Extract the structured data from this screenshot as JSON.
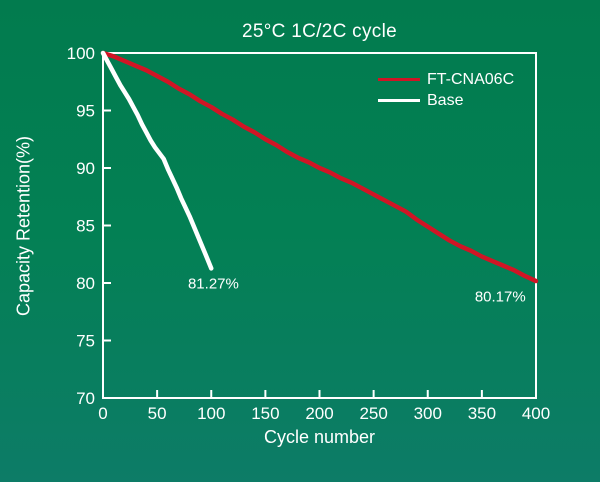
{
  "chart_data": {
    "type": "line",
    "title": "25°C 1C/2C cycle",
    "xlabel": "Cycle number",
    "ylabel": "Capacity Retention(%)",
    "xlim": [
      0,
      400
    ],
    "ylim": [
      70,
      100
    ],
    "xticks": [
      0,
      50,
      100,
      150,
      200,
      250,
      300,
      350,
      400
    ],
    "yticks": [
      70,
      75,
      80,
      85,
      90,
      95,
      100
    ],
    "grid": false,
    "legend_position": "top-right-inside",
    "colors": {
      "background_top": "#027b4e",
      "background_bottom": "#0d7c67",
      "axis": "#ffffff",
      "text": "#ffffff"
    },
    "series": [
      {
        "name": "FT-CNA06C",
        "color": "#d01525",
        "x": [
          0,
          10,
          20,
          30,
          40,
          50,
          60,
          70,
          80,
          90,
          100,
          110,
          120,
          130,
          140,
          150,
          160,
          170,
          180,
          190,
          200,
          210,
          220,
          230,
          240,
          250,
          260,
          270,
          280,
          290,
          300,
          310,
          320,
          330,
          340,
          350,
          360,
          370,
          380,
          390,
          400
        ],
        "y": [
          100.0,
          99.7,
          99.3,
          98.9,
          98.5,
          98.0,
          97.5,
          96.9,
          96.4,
          95.8,
          95.3,
          94.7,
          94.2,
          93.6,
          93.1,
          92.5,
          92.0,
          91.4,
          90.9,
          90.5,
          90.0,
          89.6,
          89.1,
          88.7,
          88.2,
          87.7,
          87.2,
          86.7,
          86.2,
          85.5,
          84.9,
          84.3,
          83.7,
          83.2,
          82.8,
          82.3,
          81.9,
          81.5,
          81.1,
          80.6,
          80.17
        ]
      },
      {
        "name": "Base",
        "color": "#ffffff",
        "x": [
          0,
          4,
          8,
          12,
          16,
          20,
          24,
          28,
          32,
          36,
          40,
          44,
          48,
          52,
          56,
          60,
          64,
          68,
          72,
          76,
          80,
          84,
          88,
          92,
          96,
          100
        ],
        "y": [
          100.0,
          99.3,
          98.6,
          97.9,
          97.2,
          96.6,
          96.0,
          95.3,
          94.6,
          93.8,
          93.1,
          92.4,
          91.8,
          91.3,
          90.8,
          89.9,
          89.1,
          88.3,
          87.4,
          86.6,
          85.8,
          84.9,
          84.0,
          83.1,
          82.2,
          81.27
        ]
      }
    ],
    "annotations": [
      {
        "text": "81.27%",
        "x": 102,
        "y": 79.9
      },
      {
        "text": "80.17%",
        "x": 367,
        "y": 78.8
      }
    ]
  }
}
